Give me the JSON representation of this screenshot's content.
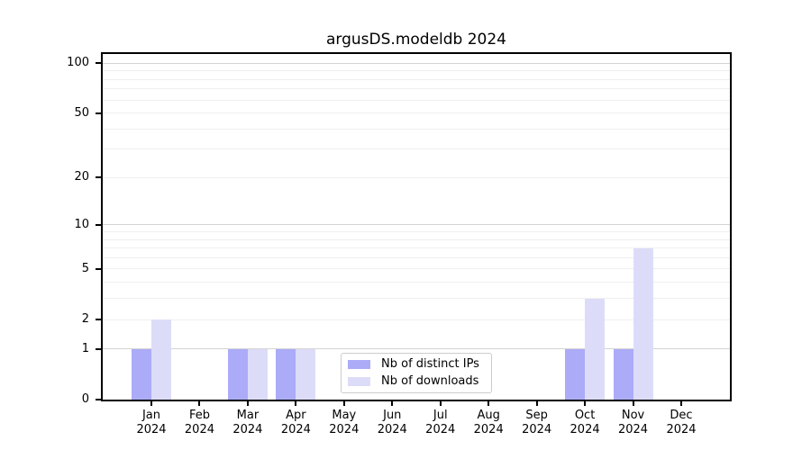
{
  "title": "argusDS.modeldb 2024",
  "chart_data": {
    "type": "bar",
    "title": "argusDS.modeldb 2024",
    "categories": [
      "Jan 2024",
      "Feb 2024",
      "Mar 2024",
      "Apr 2024",
      "May 2024",
      "Jun 2024",
      "Jul 2024",
      "Aug 2024",
      "Sep 2024",
      "Oct 2024",
      "Nov 2024",
      "Dec 2024"
    ],
    "series": [
      {
        "name": "Nb of distinct IPs",
        "color": "#ababf8",
        "values": [
          1,
          0,
          1,
          1,
          0,
          0,
          0,
          0,
          0,
          1,
          1,
          0
        ]
      },
      {
        "name": "Nb of downloads",
        "color": "#dcdcf9",
        "values": [
          2,
          0,
          1,
          1,
          0,
          0,
          0,
          0,
          0,
          3,
          7,
          0
        ]
      }
    ],
    "xlabel": "",
    "ylabel": "",
    "y_scale": "log1p",
    "ylim": [
      0,
      113.6
    ],
    "y_tick_labels": [
      0,
      1,
      2,
      5,
      10,
      20,
      50,
      100
    ],
    "y_major_gridlines": [
      1,
      10,
      100
    ],
    "y_minor_gridlines": [
      2,
      3,
      4,
      5,
      6,
      7,
      8,
      9,
      20,
      30,
      40,
      50,
      60,
      70,
      80,
      90
    ],
    "grid": true,
    "legend_position": "lower center"
  },
  "colors": {
    "bar_distinct_ips": "#ababf8",
    "bar_downloads": "#dcdcf9",
    "grid_major": "#d4d4d4",
    "grid_minor": "#efefef",
    "axis": "#000000"
  }
}
